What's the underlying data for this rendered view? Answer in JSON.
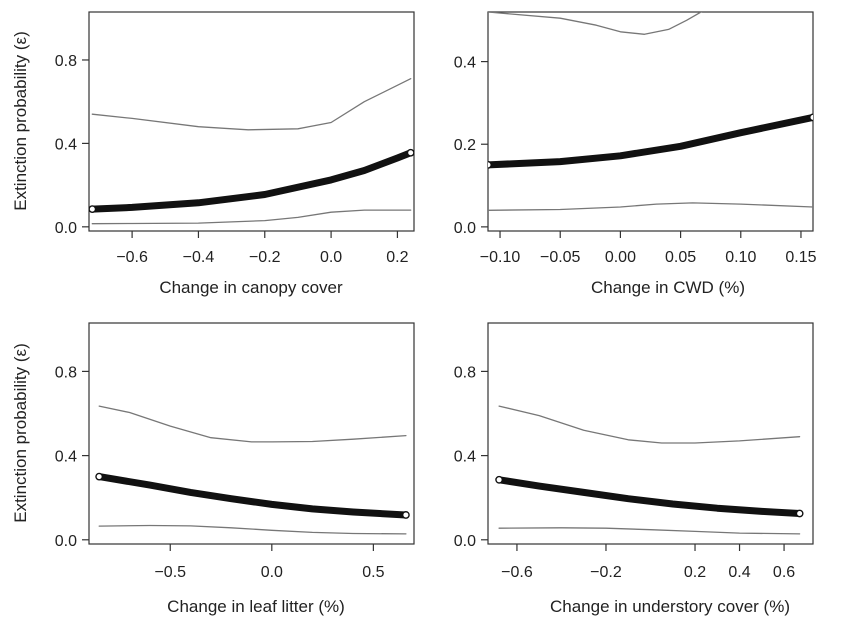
{
  "chart_data": [
    {
      "type": "line",
      "xlabel": "Change in canopy cover",
      "ylabel": "Extinction probability (ε)",
      "xlim": [
        -0.73,
        0.25
      ],
      "ylim": [
        -0.02,
        1.03
      ],
      "xticks": [
        -0.6,
        -0.4,
        -0.2,
        0.0,
        0.2
      ],
      "xtick_labels": [
        "−0.6",
        "−0.4",
        "−0.2",
        "0.0",
        "0.2"
      ],
      "yticks": [
        0.0,
        0.4,
        0.8
      ],
      "ytick_labels": [
        "0.0",
        "0.4",
        "0.8"
      ],
      "grid": false,
      "series": [
        {
          "role": "estimate",
          "x": [
            -0.72,
            -0.6,
            -0.4,
            -0.2,
            0.0,
            0.1,
            0.2,
            0.24
          ],
          "y": [
            0.085,
            0.093,
            0.115,
            0.155,
            0.225,
            0.27,
            0.33,
            0.355
          ]
        },
        {
          "role": "upper",
          "x": [
            -0.72,
            -0.6,
            -0.4,
            -0.25,
            -0.1,
            0.0,
            0.1,
            0.24
          ],
          "y": [
            0.54,
            0.52,
            0.48,
            0.465,
            0.47,
            0.5,
            0.6,
            0.71
          ]
        },
        {
          "role": "lower",
          "x": [
            -0.72,
            -0.6,
            -0.4,
            -0.2,
            -0.1,
            0.0,
            0.1,
            0.24
          ],
          "y": [
            0.015,
            0.016,
            0.018,
            0.03,
            0.045,
            0.07,
            0.08,
            0.08
          ]
        }
      ]
    },
    {
      "type": "line",
      "xlabel": "Change in CWD (%)",
      "ylabel": "",
      "xlim": [
        -0.11,
        0.16
      ],
      "ylim": [
        -0.01,
        0.52
      ],
      "xticks": [
        -0.1,
        -0.05,
        0.0,
        0.05,
        0.1,
        0.15
      ],
      "xtick_labels": [
        "−0.10",
        "−0.05",
        "0.00",
        "0.05",
        "0.10",
        "0.15"
      ],
      "yticks": [
        0.0,
        0.2,
        0.4
      ],
      "ytick_labels": [
        "0.0",
        "0.2",
        "0.4"
      ],
      "grid": false,
      "series": [
        {
          "role": "estimate",
          "x": [
            -0.11,
            -0.05,
            0.0,
            0.05,
            0.1,
            0.16
          ],
          "y": [
            0.15,
            0.158,
            0.172,
            0.195,
            0.228,
            0.265
          ]
        },
        {
          "role": "upper",
          "x": [
            -0.11,
            -0.05,
            -0.02,
            0.0,
            0.02,
            0.04,
            0.055,
            0.07
          ],
          "y": [
            0.52,
            0.505,
            0.488,
            0.472,
            0.466,
            0.478,
            0.5,
            0.525
          ]
        },
        {
          "role": "lower",
          "x": [
            -0.11,
            -0.05,
            0.0,
            0.03,
            0.06,
            0.1,
            0.16
          ],
          "y": [
            0.04,
            0.042,
            0.048,
            0.055,
            0.058,
            0.055,
            0.048
          ]
        }
      ]
    },
    {
      "type": "line",
      "xlabel": "Change in leaf litter (%)",
      "ylabel": "Extinction probability (ε)",
      "xlim": [
        -0.9,
        0.7
      ],
      "ylim": [
        -0.02,
        1.03
      ],
      "xticks": [
        -0.5,
        0.0,
        0.5
      ],
      "xtick_labels": [
        "−0.5",
        "0.0",
        "0.5"
      ],
      "yticks": [
        0.0,
        0.4,
        0.8
      ],
      "ytick_labels": [
        "0.0",
        "0.4",
        "0.8"
      ],
      "grid": false,
      "series": [
        {
          "role": "estimate",
          "x": [
            -0.85,
            -0.6,
            -0.4,
            -0.2,
            0.0,
            0.2,
            0.4,
            0.66
          ],
          "y": [
            0.3,
            0.26,
            0.225,
            0.195,
            0.168,
            0.147,
            0.132,
            0.118
          ]
        },
        {
          "role": "upper",
          "x": [
            -0.85,
            -0.7,
            -0.5,
            -0.3,
            -0.1,
            0.0,
            0.2,
            0.4,
            0.66
          ],
          "y": [
            0.635,
            0.605,
            0.54,
            0.485,
            0.465,
            0.465,
            0.467,
            0.478,
            0.495
          ]
        },
        {
          "role": "lower",
          "x": [
            -0.85,
            -0.6,
            -0.4,
            -0.2,
            0.0,
            0.2,
            0.4,
            0.66
          ],
          "y": [
            0.065,
            0.068,
            0.066,
            0.057,
            0.045,
            0.035,
            0.03,
            0.028
          ]
        }
      ]
    },
    {
      "type": "line",
      "xlabel": "Change in understory cover (%)",
      "ylabel": "",
      "xlim": [
        -0.73,
        0.73
      ],
      "ylim": [
        -0.02,
        1.03
      ],
      "xticks": [
        -0.6,
        -0.2,
        0.2,
        0.4,
        0.6
      ],
      "xtick_labels": [
        "−0.6",
        "−0.2",
        "0.2",
        "0.4",
        "0.6"
      ],
      "yticks": [
        0.0,
        0.4,
        0.8
      ],
      "ytick_labels": [
        "0.0",
        "0.4",
        "0.8"
      ],
      "grid": false,
      "series": [
        {
          "role": "estimate",
          "x": [
            -0.68,
            -0.5,
            -0.3,
            -0.1,
            0.1,
            0.3,
            0.5,
            0.67
          ],
          "y": [
            0.285,
            0.255,
            0.225,
            0.195,
            0.17,
            0.15,
            0.135,
            0.125
          ]
        },
        {
          "role": "upper",
          "x": [
            -0.68,
            -0.5,
            -0.3,
            -0.1,
            0.05,
            0.2,
            0.4,
            0.67
          ],
          "y": [
            0.635,
            0.59,
            0.52,
            0.475,
            0.46,
            0.46,
            0.47,
            0.49
          ]
        },
        {
          "role": "lower",
          "x": [
            -0.68,
            -0.4,
            -0.2,
            0.0,
            0.2,
            0.4,
            0.67
          ],
          "y": [
            0.055,
            0.057,
            0.055,
            0.048,
            0.04,
            0.032,
            0.028
          ]
        }
      ]
    }
  ]
}
